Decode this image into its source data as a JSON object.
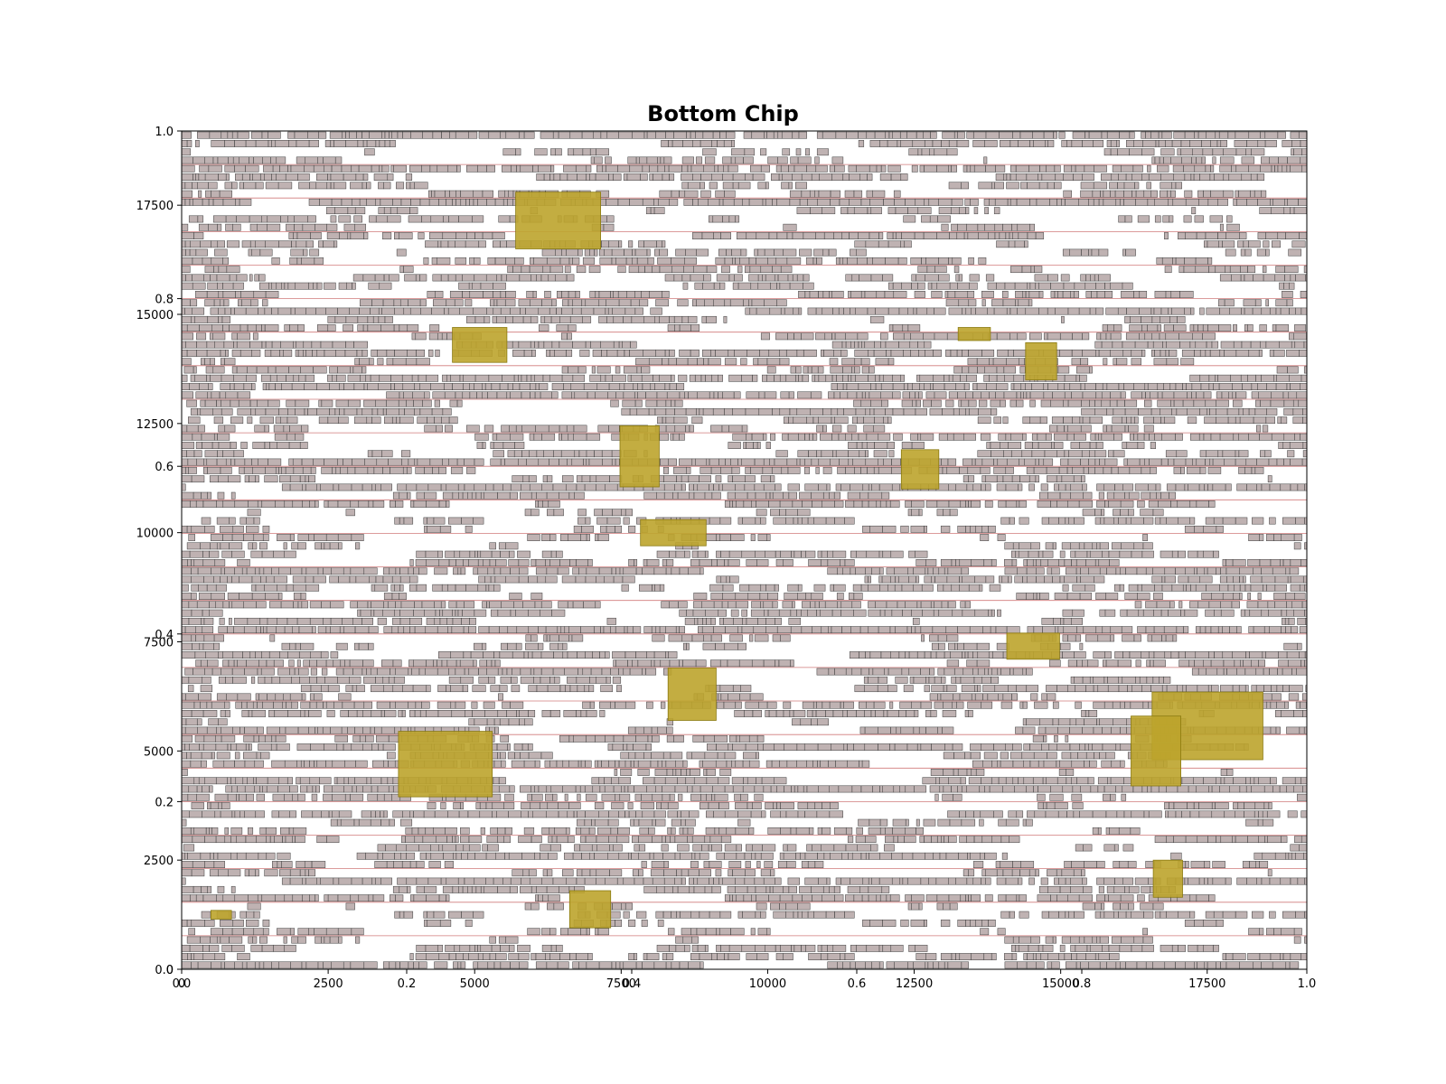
{
  "chart_data": {
    "type": "floorplan",
    "title": "Bottom Chip",
    "xlabel": "",
    "ylabel": "",
    "xlim": [
      0,
      19200
    ],
    "ylim": [
      0,
      19200
    ],
    "xticks": [
      0,
      2500,
      5000,
      7500,
      10000,
      12500,
      15000,
      17500
    ],
    "yticks": [
      0,
      2500,
      5000,
      7500,
      10000,
      12500,
      15000,
      17500
    ],
    "secondary_axis_ticks": [
      "0.0",
      "0.2",
      "0.4",
      "0.6",
      "0.8",
      "1.0"
    ],
    "grid": false,
    "legend": "none",
    "standard_cell_rows": 100,
    "standard_cell_color": "#bfb2b2",
    "standard_cell_edge_color": "#3a3a3a",
    "row_rail_color": "#b22222",
    "macro_color": "#bca42c",
    "macro_edge_color": "#8a7a10",
    "macros": [
      {
        "x0": 5700,
        "y0": 16500,
        "x1": 7150,
        "y1": 17800
      },
      {
        "x0": 4620,
        "y0": 13900,
        "x1": 5550,
        "y1": 14700
      },
      {
        "x0": 13250,
        "y0": 14400,
        "x1": 13800,
        "y1": 14700
      },
      {
        "x0": 14400,
        "y0": 13500,
        "x1": 14930,
        "y1": 14350
      },
      {
        "x0": 7480,
        "y0": 11050,
        "x1": 8150,
        "y1": 12450
      },
      {
        "x0": 12280,
        "y0": 11000,
        "x1": 12920,
        "y1": 11900
      },
      {
        "x0": 7830,
        "y0": 9700,
        "x1": 8950,
        "y1": 10300
      },
      {
        "x0": 14080,
        "y0": 7100,
        "x1": 14980,
        "y1": 7700
      },
      {
        "x0": 8300,
        "y0": 5700,
        "x1": 9120,
        "y1": 6900
      },
      {
        "x0": 16560,
        "y0": 4800,
        "x1": 18450,
        "y1": 6350
      },
      {
        "x0": 16200,
        "y0": 4200,
        "x1": 17050,
        "y1": 5800
      },
      {
        "x0": 3700,
        "y0": 3950,
        "x1": 5300,
        "y1": 5450
      },
      {
        "x0": 16580,
        "y0": 1650,
        "x1": 17080,
        "y1": 2500
      },
      {
        "x0": 6620,
        "y0": 950,
        "x1": 7320,
        "y1": 1800
      },
      {
        "x0": 500,
        "y0": 1150,
        "x1": 850,
        "y1": 1350
      }
    ]
  }
}
